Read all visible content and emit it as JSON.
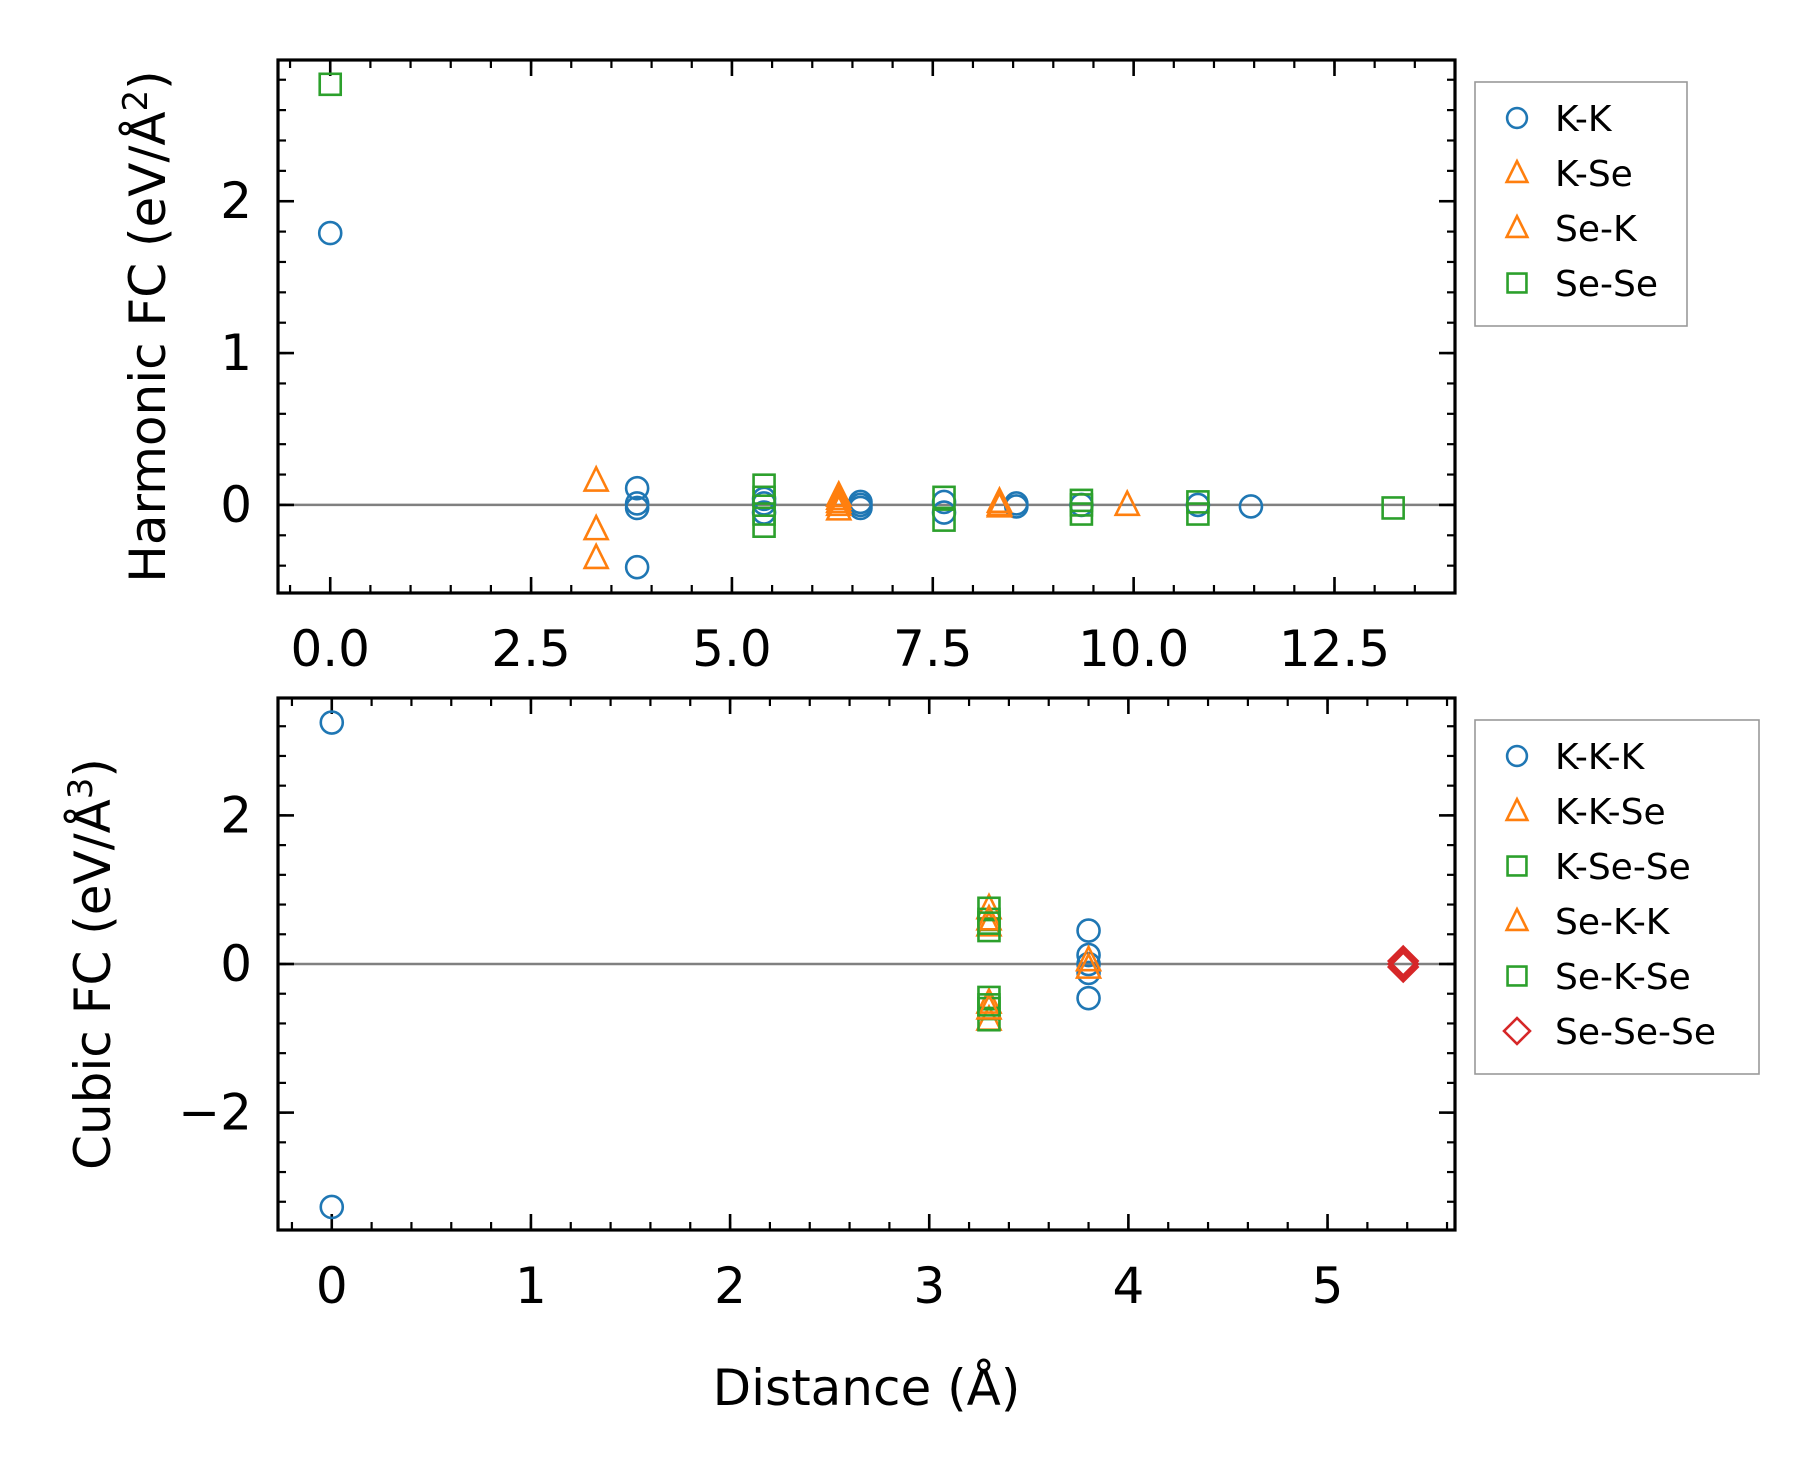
{
  "colors": {
    "blue": "#1f77b4",
    "orange": "#ff7f0e",
    "green": "#2ca02c",
    "red": "#d62728",
    "zero_line": "#808080"
  },
  "chart_data": [
    {
      "type": "scatter",
      "ylabel_main": "Harmonic FC (eV/Å",
      "ylabel_sup": "2",
      "ylabel_close": ")",
      "xlabel": "",
      "xlim": [
        -0.65,
        14.0
      ],
      "ylim": [
        -0.58,
        2.93
      ],
      "xticks": [
        0.0,
        2.5,
        5.0,
        7.5,
        10.0,
        12.5
      ],
      "xtick_labels": [
        "0.0",
        "2.5",
        "5.0",
        "7.5",
        "10.0",
        "12.5"
      ],
      "yticks": [
        0,
        1,
        2
      ],
      "ytick_labels": [
        "0",
        "1",
        "2"
      ],
      "zero_line": true,
      "legend_position": "right",
      "series": [
        {
          "name": "K-K",
          "marker": "circle",
          "color": "blue",
          "points": [
            [
              0,
              1.79
            ],
            [
              3.82,
              0.11
            ],
            [
              3.82,
              0.01
            ],
            [
              3.82,
              -0.02
            ],
            [
              3.82,
              -0.41
            ],
            [
              5.4,
              0.04
            ],
            [
              5.4,
              0.01
            ],
            [
              5.4,
              -0.05
            ],
            [
              6.6,
              0.02
            ],
            [
              6.6,
              0.0
            ],
            [
              6.6,
              -0.02
            ],
            [
              7.64,
              0.02
            ],
            [
              7.64,
              -0.05
            ],
            [
              8.54,
              0.01
            ],
            [
              8.54,
              -0.01
            ],
            [
              9.35,
              0.0
            ],
            [
              10.8,
              0.0
            ],
            [
              11.46,
              -0.01
            ]
          ]
        },
        {
          "name": "K-Se",
          "marker": "triangle",
          "color": "orange",
          "points": [
            [
              3.31,
              0.16
            ],
            [
              3.31,
              -0.16
            ],
            [
              3.31,
              -0.35
            ],
            [
              6.33,
              0.06
            ],
            [
              6.33,
              0.02
            ],
            [
              6.33,
              -0.03
            ],
            [
              8.33,
              0.02
            ],
            [
              8.33,
              -0.01
            ],
            [
              9.92,
              0.0
            ]
          ]
        },
        {
          "name": "Se-K",
          "marker": "triangle",
          "color": "orange",
          "points": [
            [
              6.33,
              0.04
            ],
            [
              6.33,
              0.0
            ],
            [
              8.33,
              0.0
            ]
          ]
        },
        {
          "name": "Se-Se",
          "marker": "square",
          "color": "green",
          "points": [
            [
              0,
              2.77
            ],
            [
              5.4,
              0.13
            ],
            [
              5.4,
              0.05
            ],
            [
              5.4,
              -0.06
            ],
            [
              5.4,
              -0.14
            ],
            [
              7.64,
              0.05
            ],
            [
              7.64,
              -0.1
            ],
            [
              9.35,
              0.03
            ],
            [
              9.35,
              0.0
            ],
            [
              9.35,
              -0.06
            ],
            [
              10.8,
              0.02
            ],
            [
              10.8,
              -0.06
            ],
            [
              13.23,
              -0.02
            ]
          ]
        }
      ]
    },
    {
      "type": "scatter",
      "ylabel_main": "Cubic FC (eV/Å",
      "ylabel_sup": "3",
      "ylabel_close": ")",
      "xlabel": "Distance (Å)",
      "xlim": [
        -0.27,
        5.64
      ],
      "ylim": [
        -3.58,
        3.58
      ],
      "xticks": [
        0,
        1,
        2,
        3,
        4,
        5
      ],
      "xtick_labels": [
        "0",
        "1",
        "2",
        "3",
        "4",
        "5"
      ],
      "yticks": [
        -2,
        0,
        2
      ],
      "ytick_labels": [
        "−2",
        "0",
        "2"
      ],
      "zero_line": true,
      "legend_position": "right",
      "series": [
        {
          "name": "K-K-K",
          "marker": "circle",
          "color": "blue",
          "points": [
            [
              0,
              3.25
            ],
            [
              0,
              -3.27
            ],
            [
              3.8,
              0.45
            ],
            [
              3.8,
              0.12
            ],
            [
              3.8,
              0.0
            ],
            [
              3.8,
              -0.12
            ],
            [
              3.8,
              -0.46
            ]
          ]
        },
        {
          "name": "K-K-Se",
          "marker": "triangle",
          "color": "orange",
          "points": [
            [
              3.3,
              0.75
            ],
            [
              3.3,
              0.52
            ],
            [
              3.3,
              -0.52
            ],
            [
              3.3,
              -0.75
            ],
            [
              3.8,
              0.05
            ]
          ]
        },
        {
          "name": "K-Se-Se",
          "marker": "square",
          "color": "green",
          "points": [
            [
              3.3,
              0.75
            ],
            [
              3.3,
              0.6
            ],
            [
              3.3,
              0.45
            ],
            [
              3.3,
              -0.45
            ],
            [
              3.3,
              -0.6
            ],
            [
              3.3,
              -0.75
            ]
          ]
        },
        {
          "name": "Se-K-K",
          "marker": "triangle",
          "color": "orange",
          "points": [
            [
              3.3,
              0.6
            ],
            [
              3.3,
              -0.6
            ],
            [
              3.8,
              -0.05
            ]
          ]
        },
        {
          "name": "Se-K-Se",
          "marker": "square",
          "color": "green",
          "points": [
            [
              3.3,
              0.55
            ],
            [
              3.3,
              -0.55
            ]
          ]
        },
        {
          "name": "Se-Se-Se",
          "marker": "diamond",
          "color": "red",
          "points": [
            [
              5.38,
              0.04
            ],
            [
              5.38,
              0.0
            ],
            [
              5.38,
              -0.04
            ]
          ]
        }
      ]
    }
  ]
}
